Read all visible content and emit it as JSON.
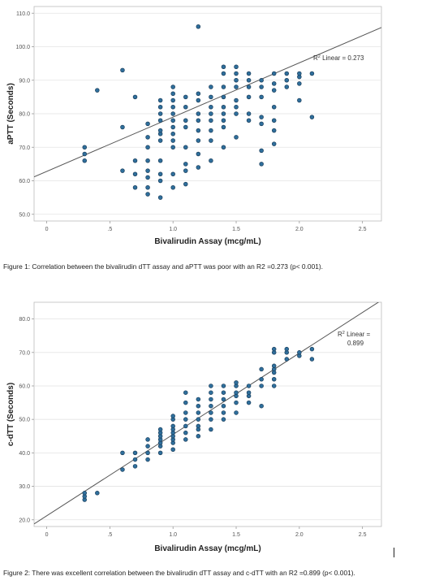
{
  "chart_data": [
    {
      "type": "scatter",
      "title": "",
      "xlabel": "Bivalirudin Assay (mcg/mL)",
      "ylabel": "aPTT (Seconds)",
      "xlim": [
        -0.1,
        2.65
      ],
      "ylim": [
        48,
        112
      ],
      "x_ticks": [
        "0",
        ".5",
        "1.0",
        "1.5",
        "2.0",
        "2.5"
      ],
      "x_tick_values": [
        0,
        0.5,
        1.0,
        1.5,
        2.0,
        2.5
      ],
      "y_ticks": [
        "50.0",
        "60.0",
        "70.0",
        "80.0",
        "90.0",
        "100.0",
        "110.0"
      ],
      "y_tick_values": [
        50,
        60,
        70,
        80,
        90,
        100,
        110
      ],
      "grid": "horizontal",
      "fit_line": {
        "slope": 16.2,
        "intercept": 62.8
      },
      "r2_label_prefix": "R",
      "r2_label_suffix": " Linear = 0.273",
      "point_color": "#2f6f9c",
      "line_color": "#555555",
      "points": [
        [
          0.3,
          66
        ],
        [
          0.3,
          68
        ],
        [
          0.3,
          70
        ],
        [
          0.4,
          87
        ],
        [
          0.6,
          93
        ],
        [
          0.6,
          63
        ],
        [
          0.6,
          76
        ],
        [
          0.7,
          62
        ],
        [
          0.7,
          58
        ],
        [
          0.7,
          66
        ],
        [
          0.7,
          85
        ],
        [
          0.8,
          56
        ],
        [
          0.8,
          58
        ],
        [
          0.8,
          61
        ],
        [
          0.8,
          63
        ],
        [
          0.8,
          66
        ],
        [
          0.8,
          70
        ],
        [
          0.8,
          73
        ],
        [
          0.8,
          77
        ],
        [
          0.9,
          55
        ],
        [
          0.9,
          60
        ],
        [
          0.9,
          62
        ],
        [
          0.9,
          66
        ],
        [
          0.9,
          72
        ],
        [
          0.9,
          74
        ],
        [
          0.9,
          75
        ],
        [
          0.9,
          78
        ],
        [
          0.9,
          80
        ],
        [
          0.9,
          82
        ],
        [
          0.9,
          84
        ],
        [
          1.0,
          58
        ],
        [
          1.0,
          62
        ],
        [
          1.0,
          70
        ],
        [
          1.0,
          72
        ],
        [
          1.0,
          74
        ],
        [
          1.0,
          76
        ],
        [
          1.0,
          78
        ],
        [
          1.0,
          80
        ],
        [
          1.0,
          82
        ],
        [
          1.0,
          84
        ],
        [
          1.0,
          86
        ],
        [
          1.0,
          88
        ],
        [
          1.1,
          59
        ],
        [
          1.1,
          63
        ],
        [
          1.1,
          65
        ],
        [
          1.1,
          70
        ],
        [
          1.1,
          76
        ],
        [
          1.1,
          78
        ],
        [
          1.1,
          82
        ],
        [
          1.1,
          85
        ],
        [
          1.2,
          64
        ],
        [
          1.2,
          68
        ],
        [
          1.2,
          72
        ],
        [
          1.2,
          75
        ],
        [
          1.2,
          78
        ],
        [
          1.2,
          80
        ],
        [
          1.2,
          84
        ],
        [
          1.2,
          86
        ],
        [
          1.2,
          106
        ],
        [
          1.3,
          66
        ],
        [
          1.3,
          72
        ],
        [
          1.3,
          75
        ],
        [
          1.3,
          78
        ],
        [
          1.3,
          80
        ],
        [
          1.3,
          82
        ],
        [
          1.3,
          85
        ],
        [
          1.3,
          88
        ],
        [
          1.4,
          70
        ],
        [
          1.4,
          76
        ],
        [
          1.4,
          78
        ],
        [
          1.4,
          80
        ],
        [
          1.4,
          82
        ],
        [
          1.4,
          85
        ],
        [
          1.4,
          88
        ],
        [
          1.4,
          92
        ],
        [
          1.4,
          94
        ],
        [
          1.5,
          73
        ],
        [
          1.5,
          80
        ],
        [
          1.5,
          82
        ],
        [
          1.5,
          84
        ],
        [
          1.5,
          88
        ],
        [
          1.5,
          90
        ],
        [
          1.5,
          92
        ],
        [
          1.5,
          94
        ],
        [
          1.6,
          78
        ],
        [
          1.6,
          80
        ],
        [
          1.6,
          85
        ],
        [
          1.6,
          88
        ],
        [
          1.6,
          90
        ],
        [
          1.6,
          92
        ],
        [
          1.7,
          65
        ],
        [
          1.7,
          69
        ],
        [
          1.7,
          77
        ],
        [
          1.7,
          79
        ],
        [
          1.7,
          85
        ],
        [
          1.7,
          88
        ],
        [
          1.7,
          90
        ],
        [
          1.8,
          71
        ],
        [
          1.8,
          75
        ],
        [
          1.8,
          78
        ],
        [
          1.8,
          82
        ],
        [
          1.8,
          87
        ],
        [
          1.8,
          89
        ],
        [
          1.8,
          92
        ],
        [
          1.9,
          88
        ],
        [
          1.9,
          90
        ],
        [
          1.9,
          92
        ],
        [
          2.0,
          89
        ],
        [
          2.0,
          91
        ],
        [
          2.0,
          92
        ],
        [
          2.1,
          79
        ],
        [
          2.1,
          92
        ],
        [
          2.0,
          84
        ]
      ]
    },
    {
      "type": "scatter",
      "title": "",
      "xlabel": "Bivalirudin Assay (mcg/mL)",
      "ylabel": "c-dTT (Seconds)",
      "xlim": [
        -0.1,
        2.65
      ],
      "ylim": [
        18,
        85
      ],
      "x_ticks": [
        "0",
        ".5",
        "1.0",
        "1.5",
        "2.0",
        "2.5"
      ],
      "x_tick_values": [
        0,
        0.5,
        1.0,
        1.5,
        2.0,
        2.5
      ],
      "y_ticks": [
        "20.0",
        "30.0",
        "40.0",
        "50.0",
        "60.0",
        "70.0",
        "80.0"
      ],
      "y_tick_values": [
        20,
        30,
        40,
        50,
        60,
        70,
        80
      ],
      "grid": "horizontal",
      "fit_line": {
        "slope": 24.3,
        "intercept": 21.2
      },
      "r2_label_prefix": "R",
      "r2_label_suffix": " Linear =",
      "r2_label_value": "0.899",
      "point_color": "#2f6f9c",
      "line_color": "#555555",
      "points": [
        [
          0.3,
          26
        ],
        [
          0.3,
          27
        ],
        [
          0.3,
          28
        ],
        [
          0.4,
          28
        ],
        [
          0.6,
          35
        ],
        [
          0.6,
          40
        ],
        [
          0.7,
          36
        ],
        [
          0.7,
          38
        ],
        [
          0.7,
          40
        ],
        [
          0.8,
          38
        ],
        [
          0.8,
          40
        ],
        [
          0.8,
          42
        ],
        [
          0.8,
          44
        ],
        [
          0.9,
          40
        ],
        [
          0.9,
          42
        ],
        [
          0.9,
          43
        ],
        [
          0.9,
          44
        ],
        [
          0.9,
          45
        ],
        [
          0.9,
          46
        ],
        [
          0.9,
          47
        ],
        [
          1.0,
          41
        ],
        [
          1.0,
          43
        ],
        [
          1.0,
          44
        ],
        [
          1.0,
          45
        ],
        [
          1.0,
          46
        ],
        [
          1.0,
          47
        ],
        [
          1.0,
          48
        ],
        [
          1.0,
          50
        ],
        [
          1.0,
          51
        ],
        [
          1.1,
          44
        ],
        [
          1.1,
          46
        ],
        [
          1.1,
          48
        ],
        [
          1.1,
          50
        ],
        [
          1.1,
          52
        ],
        [
          1.1,
          55
        ],
        [
          1.1,
          58
        ],
        [
          1.2,
          45
        ],
        [
          1.2,
          47
        ],
        [
          1.2,
          48
        ],
        [
          1.2,
          50
        ],
        [
          1.2,
          52
        ],
        [
          1.2,
          54
        ],
        [
          1.2,
          56
        ],
        [
          1.3,
          47
        ],
        [
          1.3,
          50
        ],
        [
          1.3,
          52
        ],
        [
          1.3,
          54
        ],
        [
          1.3,
          56
        ],
        [
          1.3,
          58
        ],
        [
          1.3,
          60
        ],
        [
          1.4,
          50
        ],
        [
          1.4,
          52
        ],
        [
          1.4,
          54
        ],
        [
          1.4,
          56
        ],
        [
          1.4,
          58
        ],
        [
          1.4,
          60
        ],
        [
          1.5,
          52
        ],
        [
          1.5,
          55
        ],
        [
          1.5,
          57
        ],
        [
          1.5,
          58
        ],
        [
          1.5,
          60
        ],
        [
          1.5,
          61
        ],
        [
          1.6,
          55
        ],
        [
          1.6,
          57
        ],
        [
          1.6,
          58
        ],
        [
          1.6,
          60
        ],
        [
          1.7,
          54
        ],
        [
          1.7,
          60
        ],
        [
          1.7,
          62
        ],
        [
          1.7,
          65
        ],
        [
          1.8,
          60
        ],
        [
          1.8,
          62
        ],
        [
          1.8,
          64
        ],
        [
          1.8,
          65
        ],
        [
          1.8,
          66
        ],
        [
          1.8,
          70
        ],
        [
          1.8,
          71
        ],
        [
          1.9,
          68
        ],
        [
          1.9,
          70
        ],
        [
          1.9,
          71
        ],
        [
          2.0,
          69
        ],
        [
          2.0,
          70
        ],
        [
          2.1,
          68
        ],
        [
          2.1,
          71
        ]
      ]
    }
  ],
  "captions": {
    "fig1": "Figure 1: Correlation between the bivalirudin dTT assay and aPTT was poor with an R2 =0.273 (p< 0.001).",
    "fig2": "Figure 2:  There was excellent correlation between the bivalirudin dTT assay and c-dTT with an R2 =0.899 (p< 0.001)."
  }
}
